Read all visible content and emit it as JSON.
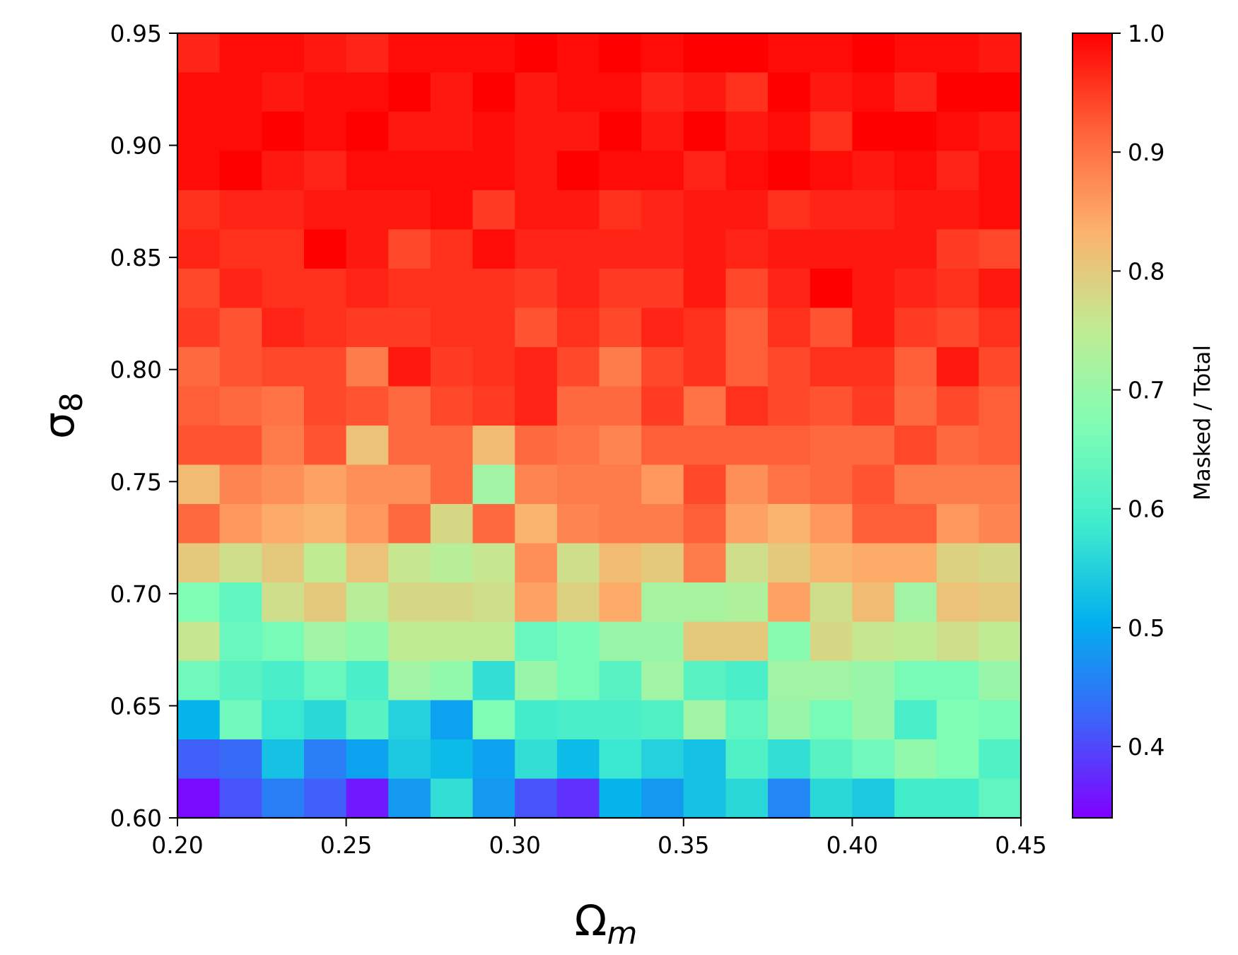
{
  "chart_data": {
    "type": "heatmap",
    "title": "",
    "xlabel": "Ω",
    "xlabel_sub": "m",
    "ylabel": "σ",
    "ylabel_sub": "8",
    "xlim": [
      0.2,
      0.45
    ],
    "ylim": [
      0.6,
      0.95
    ],
    "x_ticks": [
      "0.20",
      "0.25",
      "0.30",
      "0.35",
      "0.40",
      "0.45"
    ],
    "y_ticks": [
      "0.60",
      "0.65",
      "0.70",
      "0.75",
      "0.80",
      "0.85",
      "0.90",
      "0.95"
    ],
    "colormap": "rainbow",
    "colorbar": {
      "label": "Masked / Total",
      "range": [
        0.34,
        1.0
      ],
      "ticks": [
        "0.4",
        "0.5",
        "0.6",
        "0.7",
        "0.8",
        "0.9",
        "1.0"
      ]
    },
    "grid": false,
    "n_cols": 20,
    "n_rows": 20,
    "cell_width": 0.0125,
    "cell_height": 0.0175,
    "note_rows": "rows ordered from top (sigma8 0.95) to bottom (sigma8 0.60); columns from Omega_m 0.20 to 0.45",
    "values": [
      [
        0.97,
        0.99,
        0.99,
        0.98,
        0.97,
        0.99,
        0.99,
        0.99,
        1.0,
        0.99,
        1.0,
        0.99,
        1.0,
        1.0,
        0.99,
        0.99,
        1.0,
        0.99,
        0.99,
        0.98
      ],
      [
        0.99,
        0.99,
        0.98,
        0.99,
        0.99,
        1.0,
        0.98,
        1.0,
        0.98,
        0.99,
        0.99,
        0.97,
        0.98,
        0.96,
        1.0,
        0.98,
        0.99,
        0.97,
        1.0,
        1.0
      ],
      [
        0.99,
        0.99,
        1.0,
        0.99,
        1.0,
        0.98,
        0.98,
        0.99,
        0.98,
        0.98,
        1.0,
        0.98,
        1.0,
        0.98,
        0.99,
        0.96,
        1.0,
        1.0,
        0.99,
        0.98
      ],
      [
        0.99,
        1.0,
        0.98,
        0.97,
        0.99,
        0.99,
        0.99,
        0.99,
        0.98,
        1.0,
        0.99,
        0.99,
        0.97,
        0.99,
        1.0,
        0.99,
        0.98,
        0.99,
        0.97,
        0.99
      ],
      [
        0.96,
        0.97,
        0.97,
        0.98,
        0.98,
        0.98,
        0.99,
        0.95,
        0.98,
        0.98,
        0.96,
        0.97,
        0.98,
        0.98,
        0.96,
        0.97,
        0.97,
        0.98,
        0.98,
        0.99
      ],
      [
        0.97,
        0.96,
        0.96,
        1.0,
        0.98,
        0.94,
        0.96,
        0.99,
        0.97,
        0.97,
        0.97,
        0.97,
        0.98,
        0.97,
        0.98,
        0.98,
        0.98,
        0.98,
        0.95,
        0.94
      ],
      [
        0.94,
        0.97,
        0.96,
        0.96,
        0.97,
        0.96,
        0.96,
        0.96,
        0.95,
        0.97,
        0.95,
        0.95,
        0.98,
        0.94,
        0.97,
        1.0,
        0.98,
        0.97,
        0.96,
        0.98
      ],
      [
        0.95,
        0.93,
        0.97,
        0.96,
        0.95,
        0.95,
        0.96,
        0.96,
        0.93,
        0.96,
        0.94,
        0.97,
        0.96,
        0.92,
        0.96,
        0.93,
        0.98,
        0.95,
        0.94,
        0.96
      ],
      [
        0.91,
        0.93,
        0.94,
        0.94,
        0.89,
        0.98,
        0.95,
        0.96,
        0.97,
        0.94,
        0.89,
        0.94,
        0.96,
        0.92,
        0.94,
        0.96,
        0.96,
        0.92,
        0.98,
        0.94
      ],
      [
        0.92,
        0.91,
        0.9,
        0.94,
        0.93,
        0.91,
        0.94,
        0.95,
        0.97,
        0.91,
        0.91,
        0.95,
        0.9,
        0.96,
        0.94,
        0.93,
        0.95,
        0.91,
        0.94,
        0.92
      ],
      [
        0.93,
        0.93,
        0.89,
        0.93,
        0.81,
        0.91,
        0.91,
        0.82,
        0.91,
        0.9,
        0.88,
        0.92,
        0.92,
        0.92,
        0.92,
        0.91,
        0.91,
        0.94,
        0.91,
        0.92
      ],
      [
        0.82,
        0.88,
        0.87,
        0.85,
        0.87,
        0.87,
        0.91,
        0.71,
        0.88,
        0.89,
        0.89,
        0.86,
        0.94,
        0.87,
        0.9,
        0.91,
        0.93,
        0.89,
        0.89,
        0.89
      ],
      [
        0.91,
        0.86,
        0.84,
        0.83,
        0.86,
        0.91,
        0.78,
        0.91,
        0.83,
        0.88,
        0.89,
        0.89,
        0.92,
        0.85,
        0.83,
        0.86,
        0.92,
        0.92,
        0.86,
        0.88
      ],
      [
        0.8,
        0.77,
        0.8,
        0.75,
        0.81,
        0.76,
        0.74,
        0.76,
        0.87,
        0.77,
        0.82,
        0.8,
        0.89,
        0.77,
        0.8,
        0.83,
        0.84,
        0.84,
        0.79,
        0.78
      ],
      [
        0.67,
        0.63,
        0.77,
        0.8,
        0.74,
        0.78,
        0.78,
        0.77,
        0.85,
        0.79,
        0.84,
        0.72,
        0.72,
        0.73,
        0.85,
        0.77,
        0.82,
        0.71,
        0.81,
        0.8
      ],
      [
        0.76,
        0.64,
        0.66,
        0.71,
        0.69,
        0.75,
        0.75,
        0.75,
        0.64,
        0.66,
        0.7,
        0.7,
        0.8,
        0.8,
        0.68,
        0.78,
        0.76,
        0.75,
        0.77,
        0.75
      ],
      [
        0.65,
        0.62,
        0.6,
        0.64,
        0.6,
        0.71,
        0.69,
        0.57,
        0.7,
        0.66,
        0.62,
        0.71,
        0.62,
        0.6,
        0.71,
        0.71,
        0.7,
        0.66,
        0.66,
        0.7
      ],
      [
        0.51,
        0.65,
        0.58,
        0.56,
        0.62,
        0.55,
        0.49,
        0.67,
        0.59,
        0.6,
        0.6,
        0.61,
        0.71,
        0.63,
        0.7,
        0.66,
        0.7,
        0.6,
        0.67,
        0.66
      ],
      [
        0.42,
        0.43,
        0.53,
        0.45,
        0.49,
        0.54,
        0.52,
        0.49,
        0.57,
        0.52,
        0.58,
        0.55,
        0.53,
        0.61,
        0.57,
        0.62,
        0.65,
        0.69,
        0.67,
        0.61
      ],
      [
        0.35,
        0.41,
        0.45,
        0.42,
        0.36,
        0.48,
        0.57,
        0.48,
        0.41,
        0.38,
        0.51,
        0.48,
        0.53,
        0.56,
        0.46,
        0.56,
        0.54,
        0.59,
        0.59,
        0.63
      ]
    ]
  },
  "colors": {
    "rainbow_stops": [
      "#8000ff",
      "#3d63f9",
      "#02b0ee",
      "#40eccd",
      "#80fdb4",
      "#c1eb92",
      "#fdb06c",
      "#ff623a",
      "#ff0000"
    ]
  }
}
